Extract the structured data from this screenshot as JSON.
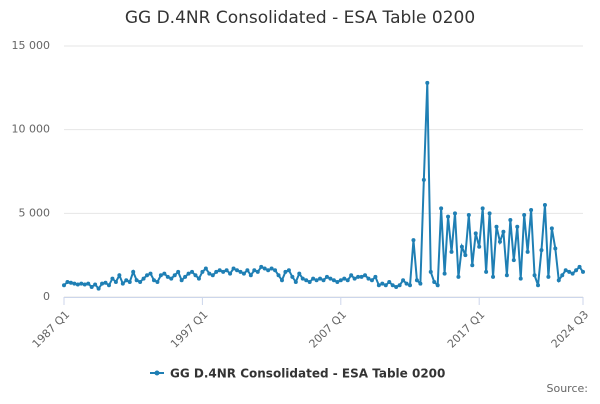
{
  "chart_data": {
    "type": "line",
    "title": "GG D.4NR Consolidated - ESA Table 0200",
    "source": "Source:",
    "categories": [
      "1987 Q1",
      null,
      null,
      null,
      null,
      null,
      null,
      null,
      null,
      null,
      null,
      null,
      null,
      null,
      null,
      null,
      null,
      null,
      null,
      null,
      null,
      null,
      null,
      null,
      null,
      null,
      null,
      null,
      null,
      null,
      null,
      null,
      null,
      null,
      null,
      null,
      null,
      null,
      null,
      null,
      "1997 Q1",
      null,
      null,
      null,
      null,
      null,
      null,
      null,
      null,
      null,
      null,
      null,
      null,
      null,
      null,
      null,
      null,
      null,
      null,
      null,
      null,
      null,
      null,
      null,
      null,
      null,
      null,
      null,
      null,
      null,
      null,
      null,
      null,
      null,
      null,
      null,
      null,
      null,
      null,
      null,
      "2007 Q1",
      null,
      null,
      null,
      null,
      null,
      null,
      null,
      null,
      null,
      null,
      null,
      null,
      null,
      null,
      null,
      null,
      null,
      null,
      null,
      null,
      null,
      null,
      null,
      null,
      null,
      null,
      null,
      null,
      null,
      null,
      null,
      null,
      null,
      null,
      null,
      null,
      null,
      null,
      null,
      "2017 Q1",
      null,
      null,
      null,
      null,
      null,
      null,
      null,
      null,
      null,
      null,
      null,
      null,
      null,
      null,
      null,
      null,
      null,
      null,
      null,
      null,
      null,
      null,
      null,
      null,
      null,
      null,
      null,
      null,
      null,
      "2024 Q3"
    ],
    "series": [
      {
        "name": "GG D.4NR Consolidated - ESA Table 0200",
        "color": "#1f7fb4",
        "values": [
          700,
          900,
          850,
          800,
          750,
          800,
          750,
          800,
          600,
          750,
          500,
          800,
          850,
          700,
          1100,
          900,
          1300,
          800,
          1000,
          900,
          1500,
          1000,
          900,
          1100,
          1300,
          1400,
          1000,
          900,
          1300,
          1400,
          1200,
          1100,
          1300,
          1500,
          1000,
          1200,
          1400,
          1500,
          1300,
          1100,
          1500,
          1700,
          1400,
          1300,
          1500,
          1600,
          1500,
          1600,
          1400,
          1700,
          1600,
          1500,
          1400,
          1600,
          1300,
          1600,
          1500,
          1800,
          1700,
          1600,
          1700,
          1600,
          1300,
          1000,
          1500,
          1600,
          1200,
          900,
          1400,
          1100,
          1000,
          900,
          1100,
          1000,
          1100,
          1000,
          1200,
          1100,
          1000,
          900,
          1000,
          1100,
          1000,
          1300,
          1100,
          1200,
          1200,
          1300,
          1100,
          1000,
          1200,
          700,
          800,
          700,
          900,
          700,
          600,
          700,
          1000,
          800,
          700,
          3400,
          1000,
          800,
          7000,
          12800,
          1500,
          900,
          700,
          5300,
          1400,
          4800,
          2700,
          5000,
          1200,
          3000,
          2500,
          4900,
          1900,
          3800,
          3000,
          5300,
          1500,
          5000,
          1200,
          4200,
          3300,
          3900,
          1300,
          4600,
          2200,
          4200,
          1100,
          4900,
          2700,
          5200,
          1300,
          700,
          2800,
          5500,
          1200,
          4100,
          2900,
          1000,
          1300,
          1600,
          1500,
          1400,
          1600,
          1800,
          1500
        ]
      }
    ],
    "ylim": [
      0,
      15000
    ],
    "yticks": [
      0,
      {
        "value": 5000,
        "label": "5 000"
      },
      {
        "value": 10000,
        "label": "10 000"
      },
      {
        "value": 15000,
        "label": "15 000"
      }
    ],
    "grid": true
  }
}
